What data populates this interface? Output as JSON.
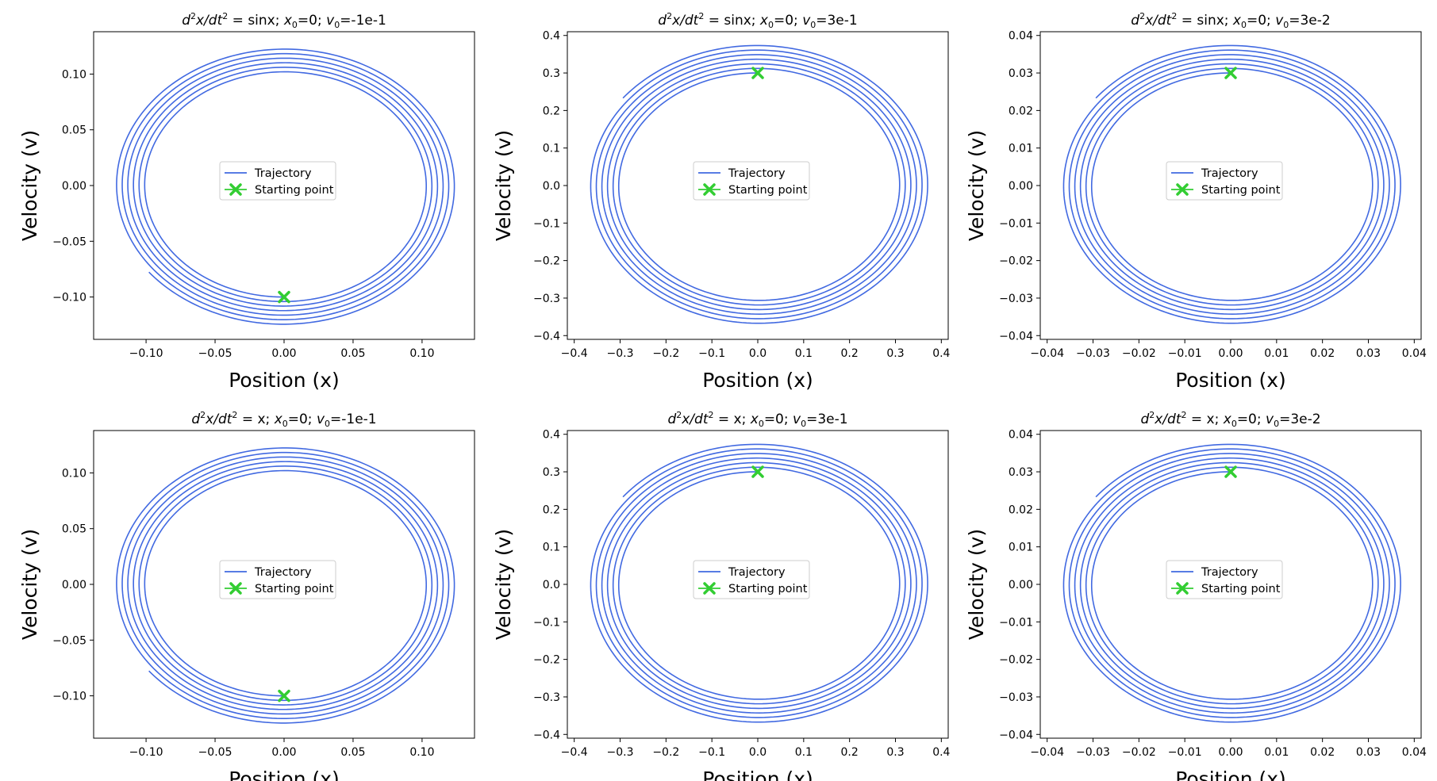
{
  "figure": {
    "xlabel": "Position (x)",
    "ylabel": "Velocity (v)",
    "legend": {
      "trajectory": "Trajectory",
      "start": "Starting point",
      "placement": "center"
    },
    "colors": {
      "trajectory": "#4169e1",
      "start": "#32cd32",
      "axes": "#000000",
      "background": "#ffffff"
    }
  },
  "chart_data": [
    {
      "type": "line",
      "title": {
        "lead": "d²x/dt² = ",
        "rhs": "sinx",
        "x0": "0",
        "v0": "-1e-1"
      },
      "xlim": [
        -0.138,
        0.138
      ],
      "ylim": [
        -0.138,
        0.138
      ],
      "xticks": [
        -0.1,
        -0.05,
        0.0,
        0.05,
        0.1
      ],
      "xtick_labels": [
        "−0.10",
        "−0.05",
        "0.00",
        "0.05",
        "0.10"
      ],
      "yticks": [
        -0.1,
        -0.05,
        0.0,
        0.05,
        0.1
      ],
      "ytick_labels": [
        "−0.10",
        "−0.05",
        "0.00",
        "0.05",
        "0.10"
      ],
      "start": [
        0,
        -0.1
      ],
      "spiral": {
        "r_inner": 0.1,
        "r_outer": 0.125,
        "theta_start": 4.712,
        "theta_end": 4.712,
        "turns": 6,
        "direction": -1
      },
      "end_point": [
        0.04,
        -0.122
      ],
      "grid": false
    },
    {
      "type": "line",
      "title": {
        "lead": "d²x/dt² = ",
        "rhs": "sinx",
        "x0": "0",
        "v0": "3e-1"
      },
      "xlim": [
        -0.415,
        0.415
      ],
      "ylim": [
        -0.41,
        0.41
      ],
      "xticks": [
        -0.4,
        -0.3,
        -0.2,
        -0.1,
        0.0,
        0.1,
        0.2,
        0.3,
        0.4
      ],
      "xtick_labels": [
        "−0.4",
        "−0.3",
        "−0.2",
        "−0.1",
        "0.0",
        "0.1",
        "0.2",
        "0.3",
        "0.4"
      ],
      "yticks": [
        -0.4,
        -0.3,
        -0.2,
        -0.1,
        0.0,
        0.1,
        0.2,
        0.3,
        0.4
      ],
      "ytick_labels": [
        "−0.4",
        "−0.3",
        "−0.2",
        "−0.1",
        "0.0",
        "0.1",
        "0.2",
        "0.3",
        "0.4"
      ],
      "start": [
        0,
        0.3
      ],
      "spiral": {
        "r_inner": 0.3,
        "r_outer": 0.375,
        "theta_start": 1.571,
        "theta_end": 2.3,
        "turns": 6,
        "direction": 1
      },
      "end_point": [
        -0.23,
        0.305
      ],
      "grid": false
    },
    {
      "type": "line",
      "title": {
        "lead": "d²x/dt² = ",
        "rhs": "sinx",
        "x0": "0",
        "v0": "3e-2"
      },
      "xlim": [
        -0.0415,
        0.0415
      ],
      "ylim": [
        -0.041,
        0.041
      ],
      "xticks": [
        -0.04,
        -0.03,
        -0.02,
        -0.01,
        0.0,
        0.01,
        0.02,
        0.03,
        0.04
      ],
      "xtick_labels": [
        "−0.04",
        "−0.03",
        "−0.02",
        "−0.01",
        "0.00",
        "0.01",
        "0.02",
        "0.03",
        "0.04"
      ],
      "yticks": [
        -0.04,
        -0.03,
        -0.02,
        -0.01,
        0.0,
        0.01,
        0.02,
        0.03,
        0.04
      ],
      "ytick_labels": [
        "−0.04",
        "−0.03",
        "−0.02",
        "−0.01",
        "0.00",
        "0.01",
        "0.02",
        "0.03",
        "0.04"
      ],
      "start": [
        0,
        0.03
      ],
      "spiral": {
        "r_inner": 0.03,
        "r_outer": 0.0375,
        "theta_start": 1.571,
        "theta_end": 1.85,
        "turns": 6,
        "direction": 1
      },
      "end_point": [
        -0.011,
        0.037
      ],
      "grid": false
    },
    {
      "type": "line",
      "title": {
        "lead": "d²x/dt² = ",
        "rhs": "x",
        "x0": "0",
        "v0": "-1e-1"
      },
      "xlim": [
        -0.138,
        0.138
      ],
      "ylim": [
        -0.138,
        0.138
      ],
      "xticks": [
        -0.1,
        -0.05,
        0.0,
        0.05,
        0.1
      ],
      "xtick_labels": [
        "−0.10",
        "−0.05",
        "0.00",
        "0.05",
        "0.10"
      ],
      "yticks": [
        -0.1,
        -0.05,
        0.0,
        0.05,
        0.1
      ],
      "ytick_labels": [
        "−0.10",
        "−0.05",
        "0.00",
        "0.05",
        "0.10"
      ],
      "start": [
        0,
        -0.1
      ],
      "spiral": {
        "r_inner": 0.1,
        "r_outer": 0.125,
        "theta_start": 4.712,
        "theta_end": 5.0,
        "turns": 6,
        "direction": -1
      },
      "end_point": [
        0.035,
        -0.122
      ],
      "grid": false
    },
    {
      "type": "line",
      "title": {
        "lead": "d²x/dt² = ",
        "rhs": "x",
        "x0": "0",
        "v0": "3e-1"
      },
      "xlim": [
        -0.415,
        0.415
      ],
      "ylim": [
        -0.41,
        0.41
      ],
      "xticks": [
        -0.4,
        -0.3,
        -0.2,
        -0.1,
        0.0,
        0.1,
        0.2,
        0.3,
        0.4
      ],
      "xtick_labels": [
        "−0.4",
        "−0.3",
        "−0.2",
        "−0.1",
        "0.0",
        "0.1",
        "0.2",
        "0.3",
        "0.4"
      ],
      "yticks": [
        -0.4,
        -0.3,
        -0.2,
        -0.1,
        0.0,
        0.1,
        0.2,
        0.3,
        0.4
      ],
      "ytick_labels": [
        "−0.4",
        "−0.3",
        "−0.2",
        "−0.1",
        "0.0",
        "0.1",
        "0.2",
        "0.3",
        "0.4"
      ],
      "start": [
        0,
        0.3
      ],
      "spiral": {
        "r_inner": 0.3,
        "r_outer": 0.375,
        "theta_start": 1.571,
        "theta_end": 1.85,
        "turns": 6,
        "direction": 1
      },
      "end_point": [
        -0.1,
        0.37
      ],
      "grid": false
    },
    {
      "type": "line",
      "title": {
        "lead": "d²x/dt² = ",
        "rhs": "x",
        "x0": "0",
        "v0": "3e-2"
      },
      "xlim": [
        -0.0415,
        0.0415
      ],
      "ylim": [
        -0.041,
        0.041
      ],
      "xticks": [
        -0.04,
        -0.03,
        -0.02,
        -0.01,
        0.0,
        0.01,
        0.02,
        0.03,
        0.04
      ],
      "xtick_labels": [
        "−0.04",
        "−0.03",
        "−0.02",
        "−0.01",
        "0.00",
        "0.01",
        "0.02",
        "0.03",
        "0.04"
      ],
      "yticks": [
        -0.04,
        -0.03,
        -0.02,
        -0.01,
        0.0,
        0.01,
        0.02,
        0.03,
        0.04
      ],
      "ytick_labels": [
        "−0.04",
        "−0.03",
        "−0.02",
        "−0.01",
        "0.00",
        "0.01",
        "0.02",
        "0.03",
        "0.04"
      ],
      "start": [
        0,
        0.03
      ],
      "spiral": {
        "r_inner": 0.03,
        "r_outer": 0.0375,
        "theta_start": 1.571,
        "theta_end": 1.85,
        "turns": 6,
        "direction": 1
      },
      "end_point": [
        -0.011,
        0.037
      ],
      "grid": false
    }
  ]
}
